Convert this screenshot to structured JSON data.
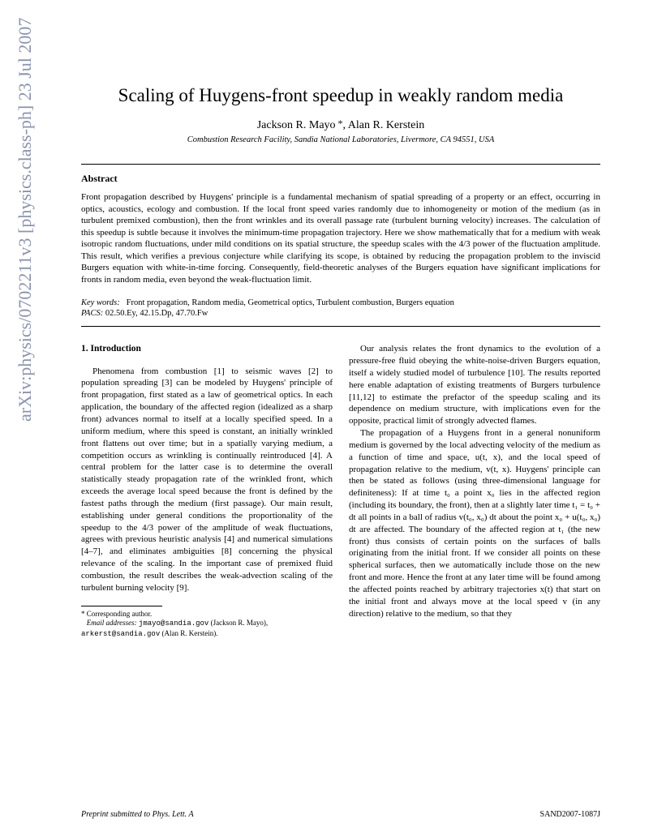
{
  "arxiv_banner": "arXiv:physics/0702211v3  [physics.class-ph]  23 Jul 2007",
  "title": "Scaling of Huygens-front speedup in weakly random media",
  "authors": "Jackson R. Mayo *, Alan R. Kerstein",
  "affiliation": "Combustion Research Facility, Sandia National Laboratories, Livermore, CA 94551, USA",
  "abstract_heading": "Abstract",
  "abstract": "Front propagation described by Huygens' principle is a fundamental mechanism of spatial spreading of a property or an effect, occurring in optics, acoustics, ecology and combustion. If the local front speed varies randomly due to inhomogeneity or motion of the medium (as in turbulent premixed combustion), then the front wrinkles and its overall passage rate (turbulent burning velocity) increases. The calculation of this speedup is subtle because it involves the minimum-time propagation trajectory. Here we show mathematically that for a medium with weak isotropic random fluctuations, under mild conditions on its spatial structure, the speedup scales with the 4/3 power of the fluctuation amplitude. This result, which verifies a previous conjecture while clarifying its scope, is obtained by reducing the propagation problem to the inviscid Burgers equation with white-in-time forcing. Consequently, field-theoretic analyses of the Burgers equation have significant implications for fronts in random media, even beyond the weak-fluctuation limit.",
  "keywords_label": "Key words:",
  "keywords": "Front propagation, Random media, Geometrical optics, Turbulent combustion, Burgers equation",
  "pacs_label": "PACS:",
  "pacs": "02.50.Ey, 42.15.Dp, 47.70.Fw",
  "section1_heading": "1. Introduction",
  "col1_p1": "Phenomena from combustion [1] to seismic waves [2] to population spreading [3] can be modeled by Huygens' principle of front propagation, first stated as a law of geometrical optics. In each application, the boundary of the affected region (idealized as a sharp front) advances normal to itself at a locally specified speed. In a uniform medium, where this speed is constant, an initially wrinkled front flattens out over time; but in a spatially varying medium, a competition occurs as wrinkling is continually reintroduced [4]. A central problem for the latter case is to determine the overall statistically steady propagation rate of the wrinkled front, which exceeds the average local speed because the front is defined by the fastest paths through the medium (first passage). Our main result, establishing under general conditions the proportionality of the speedup to the 4/3 power of the amplitude of weak fluctuations, agrees with previous heuristic analysis [4] and numerical simulations [4–7], and eliminates ambiguities [8] concerning the physical relevance of the scaling. In the important case of premixed fluid combustion, the result describes the weak-advection scaling of the turbulent burning velocity [9].",
  "col2_p1": "Our analysis relates the front dynamics to the evolution of a pressure-free fluid obeying the white-noise-driven Burgers equation, itself a widely studied model of turbulence [10]. The results reported here enable adaptation of existing treatments of Burgers turbulence [11,12] to estimate the prefactor of the speedup scaling and its dependence on medium structure, with implications even for the opposite, practical limit of strongly advected flames.",
  "col2_p2": "The propagation of a Huygens front in a general nonuniform medium is governed by the local advecting velocity of the medium as a function of time and space, u(t, x), and the local speed of propagation relative to the medium, v(t, x). Huygens' principle can then be stated as follows (using three-dimensional language for definiteness): If at time t₀ a point x₀ lies in the affected region (including its boundary, the front), then at a slightly later time t₁ = t₀ + dt all points in a ball of radius v(t₀, x₀) dt about the point x₀ + u(t₀, x₀) dt are affected. The boundary of the affected region at t₁ (the new front) thus consists of certain points on the surfaces of balls originating from the initial front. If we consider all points on these spherical surfaces, then we automatically include those on the new front and more. Hence the front at any later time will be found among the affected points reached by arbitrary trajectories x(t) that start on the initial front and always move at the local speed v (in any direction) relative to the medium, so that they",
  "footnote_star": "* Corresponding author.",
  "footnote_emails_label": "Email addresses:",
  "footnote_email1": "jmayo@sandia.gov",
  "footnote_name1": "(Jackson R. Mayo),",
  "footnote_email2": "arkerst@sandia.gov",
  "footnote_name2": "(Alan R. Kerstein).",
  "footer_left": "Preprint submitted to Phys. Lett. A",
  "footer_right": "SAND2007-1087J"
}
